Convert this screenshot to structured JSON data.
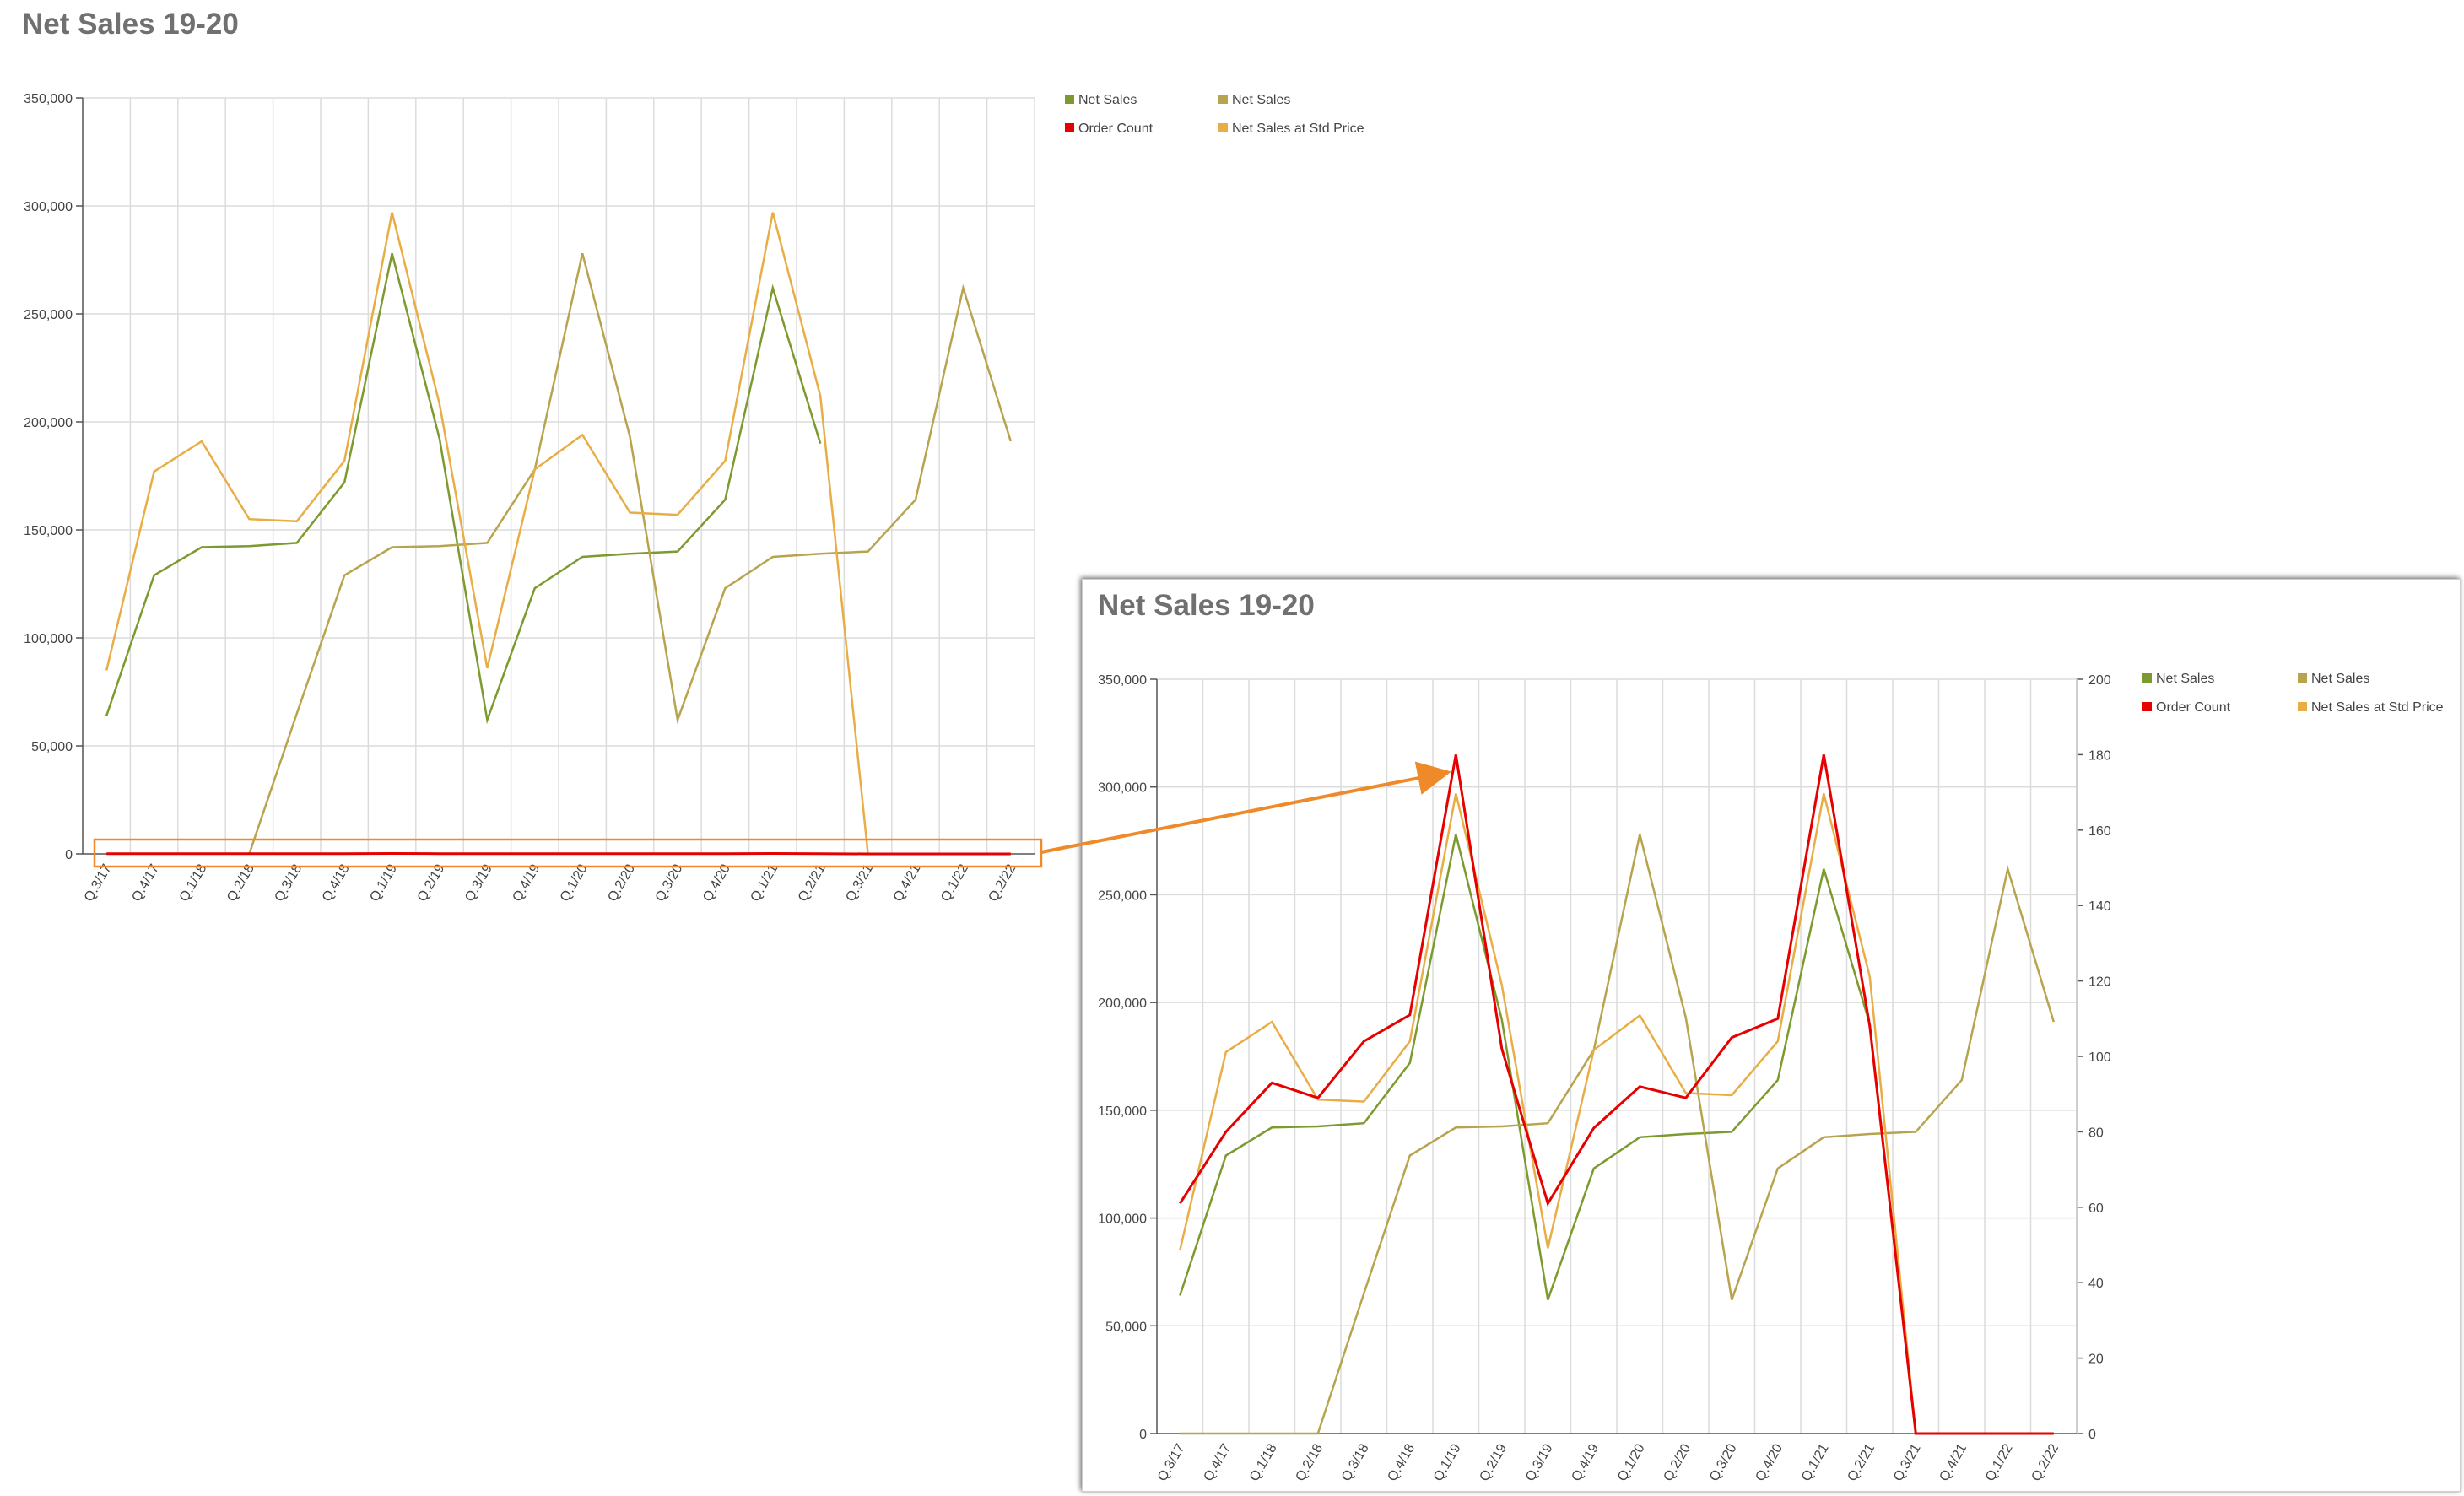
{
  "colors": {
    "net_sales": "#7d9a2e",
    "net_sales_2": "#b8a44e",
    "order_count": "#e60000",
    "net_sales_std": "#e9ad46",
    "grid": "#dcdcdc",
    "highlight": "#ef8a2b"
  },
  "chart_data": [
    {
      "type": "line",
      "title": "Net Sales 19-20",
      "categories": [
        "Q.3/17",
        "Q.4/17",
        "Q.1/18",
        "Q.2/18",
        "Q.3/18",
        "Q.4/18",
        "Q.1/19",
        "Q.2/19",
        "Q.3/19",
        "Q.4/19",
        "Q.1/20",
        "Q.2/20",
        "Q.3/20",
        "Q.4/20",
        "Q.1/21",
        "Q.2/21",
        "Q.3/21",
        "Q.4/21",
        "Q.1/22",
        "Q.2/22"
      ],
      "ylim": [
        0,
        350000
      ],
      "yticks": [
        "0",
        "50,000",
        "100,000",
        "150,000",
        "200,000",
        "250,000",
        "300,000",
        "350,000"
      ],
      "grid": true,
      "legend_position": "top-right",
      "legend": [
        "Net Sales",
        "Net Sales",
        "Order Count",
        "Net Sales at Std Price"
      ],
      "series": [
        {
          "name": "Net Sales",
          "color_key": "net_sales",
          "values": [
            64000,
            129000,
            142000,
            142500,
            144000,
            172000,
            278000,
            192000,
            62000,
            123000,
            137500,
            139000,
            140000,
            164000,
            262000,
            190000,
            null,
            null,
            null,
            null
          ]
        },
        {
          "name": "Net Sales",
          "color_key": "net_sales_2",
          "values": [
            null,
            null,
            null,
            0,
            65000,
            129000,
            142000,
            142500,
            144000,
            178000,
            278000,
            193000,
            62000,
            123000,
            137500,
            139000,
            140000,
            164000,
            262000,
            191000
          ]
        },
        {
          "name": "Net Sales at Std Price",
          "color_key": "net_sales_std",
          "values": [
            85000,
            177000,
            191000,
            155000,
            154000,
            182000,
            297000,
            208000,
            86000,
            178000,
            194000,
            158000,
            157000,
            182000,
            297000,
            212000,
            0,
            0,
            0,
            0
          ]
        },
        {
          "name": "Order Count",
          "color_key": "order_count",
          "values": [
            61,
            80,
            93,
            89,
            104,
            111,
            180,
            102,
            61,
            81,
            92,
            89,
            105,
            110,
            180,
            108,
            0,
            0,
            0,
            0
          ]
        }
      ]
    },
    {
      "type": "line",
      "title": "Net Sales 19-20",
      "categories": [
        "Q.3/17",
        "Q.4/17",
        "Q.1/18",
        "Q.2/18",
        "Q.3/18",
        "Q.4/18",
        "Q.1/19",
        "Q.2/19",
        "Q.3/19",
        "Q.4/19",
        "Q.1/20",
        "Q.2/20",
        "Q.3/20",
        "Q.4/20",
        "Q.1/21",
        "Q.2/21",
        "Q.3/21",
        "Q.4/21",
        "Q.1/22",
        "Q.2/22"
      ],
      "ylim": [
        0,
        350000
      ],
      "y2lim": [
        0,
        200
      ],
      "yticks": [
        "0",
        "50,000",
        "100,000",
        "150,000",
        "200,000",
        "250,000",
        "300,000",
        "350,000"
      ],
      "y2ticks": [
        "0",
        "20",
        "40",
        "60",
        "80",
        "100",
        "120",
        "140",
        "160",
        "180",
        "200"
      ],
      "grid": true,
      "legend_position": "top-right",
      "legend": [
        "Net Sales",
        "Net Sales",
        "Order Count",
        "Net Sales at Std Price"
      ],
      "series": [
        {
          "name": "Net Sales",
          "color_key": "net_sales",
          "values": [
            64000,
            129000,
            142000,
            142500,
            144000,
            172000,
            278000,
            192000,
            62000,
            123000,
            137500,
            139000,
            140000,
            164000,
            262000,
            190000,
            0,
            0,
            0,
            0
          ]
        },
        {
          "name": "Net Sales",
          "color_key": "net_sales_2",
          "values": [
            0,
            0,
            0,
            0,
            65000,
            129000,
            142000,
            142500,
            144000,
            178000,
            278000,
            193000,
            62000,
            123000,
            137500,
            139000,
            140000,
            164000,
            262000,
            191000
          ]
        },
        {
          "name": "Net Sales at Std Price",
          "color_key": "net_sales_std",
          "values": [
            85000,
            177000,
            191000,
            155000,
            154000,
            182000,
            297000,
            208000,
            86000,
            178000,
            194000,
            158000,
            157000,
            182000,
            297000,
            212000,
            0,
            0,
            0,
            0
          ]
        },
        {
          "name": "Order Count",
          "color_key": "order_count",
          "axis": "right",
          "values": [
            61,
            80,
            93,
            89,
            104,
            111,
            180,
            102,
            61,
            81,
            92,
            89,
            105,
            110,
            180,
            108,
            0,
            0,
            0,
            0
          ]
        }
      ]
    }
  ]
}
